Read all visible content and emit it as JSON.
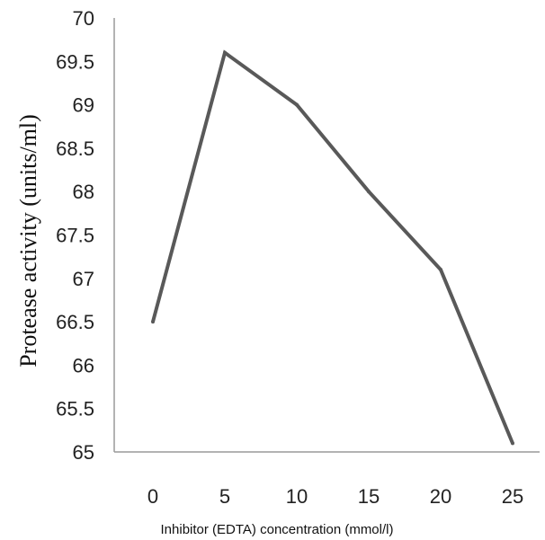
{
  "chart_data": {
    "type": "line",
    "xlabel": "Inhibitor (EDTA) concentration (mmol/l)",
    "ylabel": "Protease activity  (units/ml)",
    "x": [
      0,
      5,
      10,
      15,
      20,
      25
    ],
    "xtick_labels": [
      "0",
      "5",
      "10",
      "15",
      "20",
      "25"
    ],
    "ylim": [
      65,
      70
    ],
    "ytick_labels": [
      "65",
      "65.5",
      "66",
      "66.5",
      "67",
      "67.5",
      "68",
      "68.5",
      "69",
      "69.5",
      "70"
    ],
    "grid": false,
    "legend": "none",
    "series": [
      {
        "values": [
          66.5,
          69.6,
          69.0,
          68.0,
          67.1,
          65.1
        ],
        "color": "#595959"
      }
    ]
  }
}
